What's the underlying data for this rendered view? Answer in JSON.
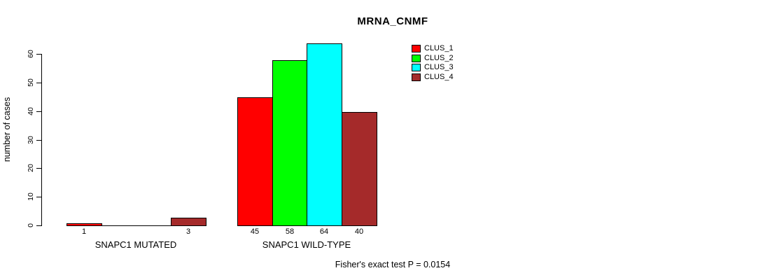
{
  "chart": {
    "title": "MRNA_CNMF",
    "ylabel": "number of cases",
    "footnote": "Fisher's exact test P = 0.0154"
  },
  "chart_data": {
    "type": "bar",
    "title": "MRNA_CNMF",
    "xlabel": "",
    "ylabel": "number of cases",
    "ylim": [
      0,
      65
    ],
    "yticks": [
      0,
      10,
      20,
      30,
      40,
      50,
      60
    ],
    "grid": false,
    "categories": [
      "SNAPC1 MUTATED",
      "SNAPC1 WILD-TYPE"
    ],
    "series": [
      {
        "name": "CLUS_1",
        "color": "#ff0000",
        "values": [
          1,
          45
        ]
      },
      {
        "name": "CLUS_2",
        "color": "#00ff00",
        "values": [
          0,
          58
        ]
      },
      {
        "name": "CLUS_3",
        "color": "#00ffff",
        "values": [
          0,
          64
        ]
      },
      {
        "name": "CLUS_4",
        "color": "#a52a2a",
        "values": [
          3,
          40
        ]
      }
    ],
    "groups": [
      {
        "label": "SNAPC1 MUTATED",
        "values": [
          1,
          0,
          0,
          3
        ],
        "visible_value_labels": [
          "1",
          "3"
        ]
      },
      {
        "label": "SNAPC1 WILD-TYPE",
        "values": [
          45,
          58,
          64,
          40
        ],
        "visible_value_labels": [
          "45",
          "58",
          "64",
          "40"
        ]
      }
    ],
    "legend": {
      "position": "top-right",
      "entries": [
        {
          "label": "CLUS_1",
          "color": "#ff0000"
        },
        {
          "label": "CLUS_2",
          "color": "#00ff00"
        },
        {
          "label": "CLUS_3",
          "color": "#00ffff"
        },
        {
          "label": "CLUS_4",
          "color": "#a52a2a"
        }
      ]
    },
    "annotation": "Fisher's exact test P = 0.0154",
    "bar_outline_color": "#000000",
    "axis_color": "#000000"
  }
}
